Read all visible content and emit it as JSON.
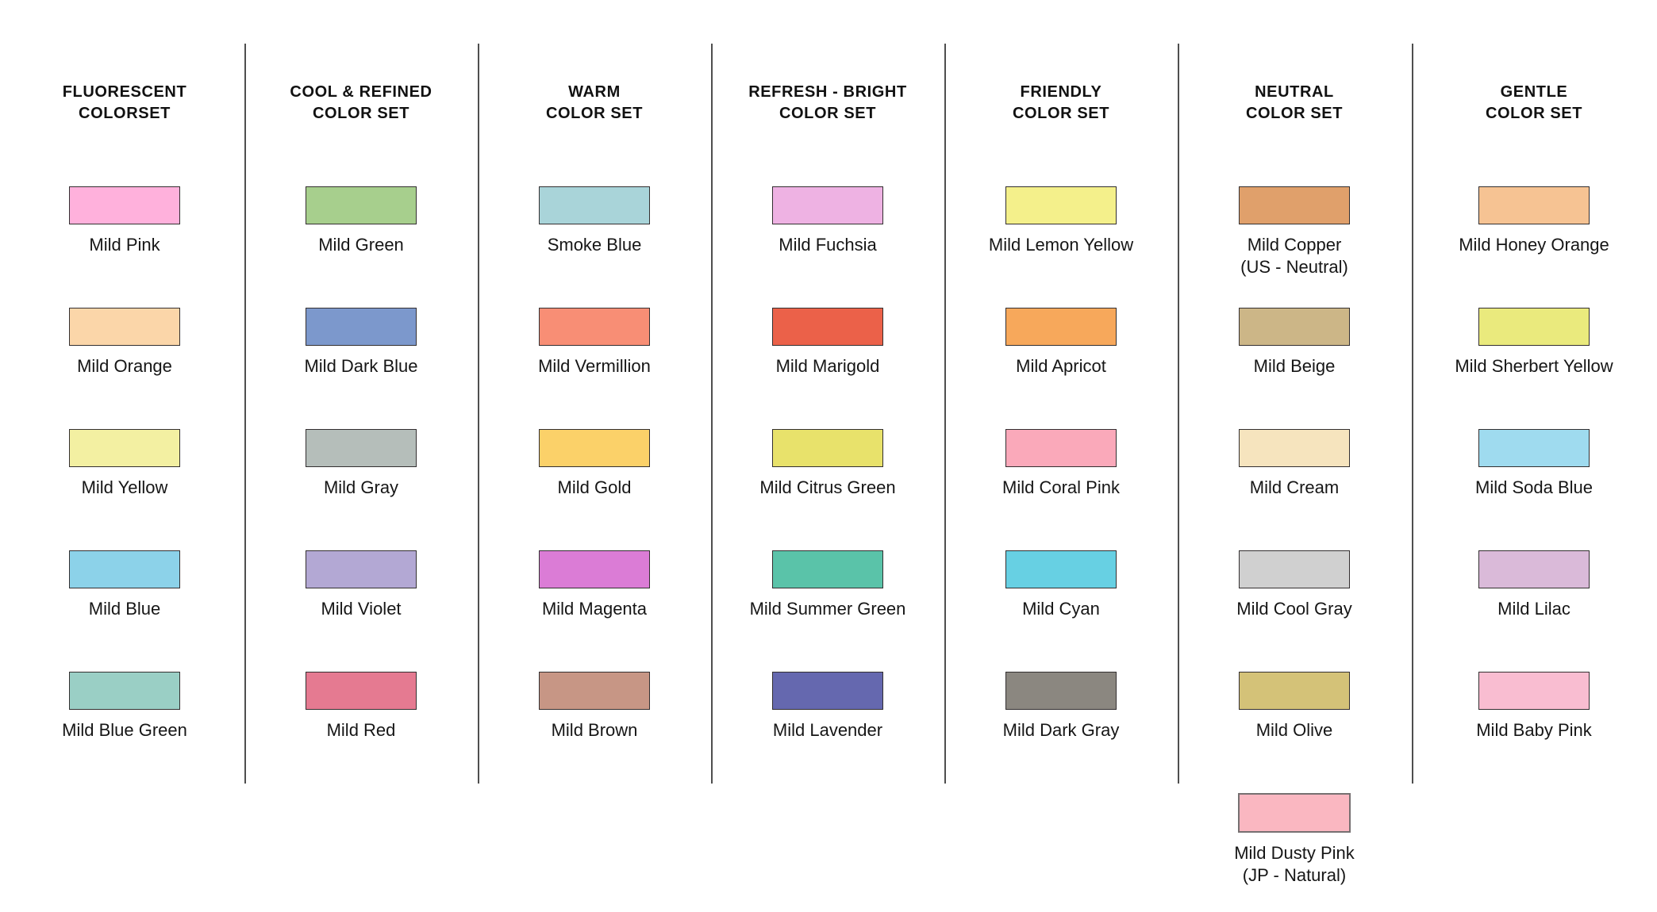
{
  "figure": {
    "description": "Mild color palette reference sheet with seven color sets"
  },
  "defaults": {
    "swatch_border_color": "#332f30"
  },
  "columns": [
    {
      "title": "FLUORESCENT\nCOLORSET",
      "swatches": [
        {
          "label": "Mild Pink",
          "color": "#FFB1DC"
        },
        {
          "label": "Mild Orange",
          "color": "#FBD6A9"
        },
        {
          "label": "Mild Yellow",
          "color": "#F3F0A2"
        },
        {
          "label": "Mild Blue",
          "color": "#8CD2E9"
        },
        {
          "label": "Mild Blue Green",
          "color": "#9ACFC5"
        }
      ]
    },
    {
      "title": "COOL & REFINED\nCOLOR SET",
      "swatches": [
        {
          "label": "Mild Green",
          "color": "#A7CF8D"
        },
        {
          "label": "Mild Dark Blue",
          "color": "#7C98CC"
        },
        {
          "label": "Mild Gray",
          "color": "#B5BEBA"
        },
        {
          "label": "Mild Violet",
          "color": "#B3A8D4"
        },
        {
          "label": "Mild Red",
          "color": "#E57A91"
        }
      ]
    },
    {
      "title": "WARM\nCOLOR SET",
      "swatches": [
        {
          "label": "Smoke Blue",
          "color": "#A9D4D9"
        },
        {
          "label": "Mild Vermillion",
          "color": "#F88E75"
        },
        {
          "label": "Mild Gold",
          "color": "#FBD169"
        },
        {
          "label": "Mild Magenta",
          "color": "#DB7CD6"
        },
        {
          "label": "Mild Brown",
          "color": "#C79685"
        }
      ]
    },
    {
      "title": "REFRESH - BRIGHT\nCOLOR SET",
      "swatches": [
        {
          "label": "Mild Fuchsia",
          "color": "#EEB2E3"
        },
        {
          "label": "Mild Marigold",
          "color": "#EB6149"
        },
        {
          "label": "Mild Citrus Green",
          "color": "#E8E26B"
        },
        {
          "label": "Mild Summer Green",
          "color": "#5AC3A9"
        },
        {
          "label": "Mild Lavender",
          "color": "#6568AF"
        }
      ]
    },
    {
      "title": "FRIENDLY\nCOLOR SET",
      "swatches": [
        {
          "label": "Mild Lemon Yellow",
          "color": "#F4F08B"
        },
        {
          "label": "Mild Apricot",
          "color": "#F7A85B"
        },
        {
          "label": "Mild Coral Pink",
          "color": "#FAA9BA"
        },
        {
          "label": "Mild Cyan",
          "color": "#67D0E3"
        },
        {
          "label": "Mild Dark Gray",
          "color": "#8B8780"
        }
      ]
    },
    {
      "title": "NEUTRAL\nCOLOR SET",
      "swatches": [
        {
          "label": "Mild Copper\n(US - Neutral)",
          "color": "#E0A06B"
        },
        {
          "label": "Mild Beige",
          "color": "#CCB687"
        },
        {
          "label": "Mild Cream",
          "color": "#F6E4BE"
        },
        {
          "label": "Mild Cool Gray",
          "color": "#D0D0D0"
        },
        {
          "label": "Mild Olive",
          "color": "#D4C278"
        },
        {
          "label": "Mild Dusty Pink\n(JP - Natural)",
          "color": "#FAB7C1",
          "border_color": "#767071"
        }
      ]
    },
    {
      "title": "GENTLE\nCOLOR SET",
      "swatches": [
        {
          "label": "Mild Honey Orange",
          "color": "#F6C393"
        },
        {
          "label": "Mild Sherbert Yellow",
          "color": "#EAEA7D"
        },
        {
          "label": "Mild Soda Blue",
          "color": "#9FDBEF"
        },
        {
          "label": "Mild Lilac",
          "color": "#DABAD9"
        },
        {
          "label": "Mild Baby Pink",
          "color": "#F9BDD1"
        }
      ]
    }
  ]
}
